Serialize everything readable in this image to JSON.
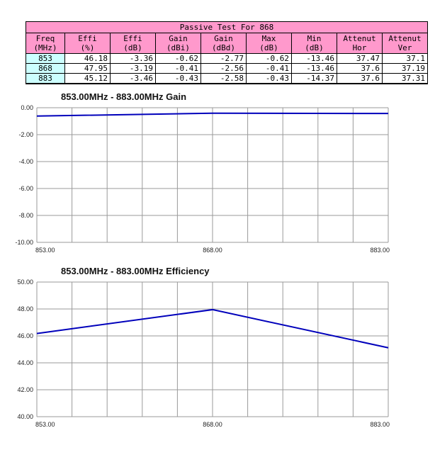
{
  "table": {
    "title": "Passive Test For 868",
    "columns": [
      [
        "Freq",
        "(MHz)"
      ],
      [
        "Effi",
        "(%)"
      ],
      [
        "Effi",
        "(dB)"
      ],
      [
        "Gain",
        "(dBi)"
      ],
      [
        "Gain",
        "(dBd)"
      ],
      [
        "Max",
        "(dB)"
      ],
      [
        "Min",
        "(dB)"
      ],
      [
        "Attenut",
        "Hor"
      ],
      [
        "Attenut",
        "Ver"
      ]
    ],
    "rows": [
      [
        "853",
        "46.18",
        "-3.36",
        "-0.62",
        "-2.77",
        "-0.62",
        "-13.46",
        "37.47",
        "37.1"
      ],
      [
        "868",
        "47.95",
        "-3.19",
        "-0.41",
        "-2.56",
        "-0.41",
        "-13.46",
        "37.6",
        "37.19"
      ],
      [
        "883",
        "45.12",
        "-3.46",
        "-0.43",
        "-2.58",
        "-0.43",
        "-14.37",
        "37.6",
        "37.31"
      ]
    ],
    "colors": {
      "header_bg": "#ff99cc",
      "freq_cell_bg": "#ccffff",
      "border": "#000000"
    }
  },
  "chart_data": [
    {
      "type": "line",
      "title": "853.00MHz - 883.00MHz Gain",
      "x": [
        853,
        868,
        883
      ],
      "values": [
        -0.62,
        -0.41,
        -0.43
      ],
      "xlim": [
        853,
        883
      ],
      "ylim": [
        -10,
        0
      ],
      "x_divisions": 10,
      "xticks": [
        853,
        868,
        883
      ],
      "xtick_labels": [
        "853.00",
        "868.00",
        "883.00"
      ],
      "ytick_labels": [
        "0.00",
        "-2.00",
        "-4.00",
        "-6.00",
        "-8.00",
        "-10.00"
      ],
      "line_color": "#0000bb",
      "grid": true,
      "legend": "none",
      "ylabel": "",
      "xlabel": ""
    },
    {
      "type": "line",
      "title": "853.00MHz - 883.00MHz Efficiency",
      "x": [
        853,
        868,
        883
      ],
      "values": [
        46.18,
        47.95,
        45.12
      ],
      "xlim": [
        853,
        883
      ],
      "ylim": [
        40,
        50
      ],
      "x_divisions": 10,
      "xticks": [
        853,
        868,
        883
      ],
      "xtick_labels": [
        "853.00",
        "868.00",
        "883.00"
      ],
      "ytick_labels": [
        "50.00",
        "48.00",
        "46.00",
        "44.00",
        "42.00",
        "40.00"
      ],
      "line_color": "#0000bb",
      "grid": true,
      "legend": "none",
      "ylabel": "",
      "xlabel": ""
    }
  ]
}
